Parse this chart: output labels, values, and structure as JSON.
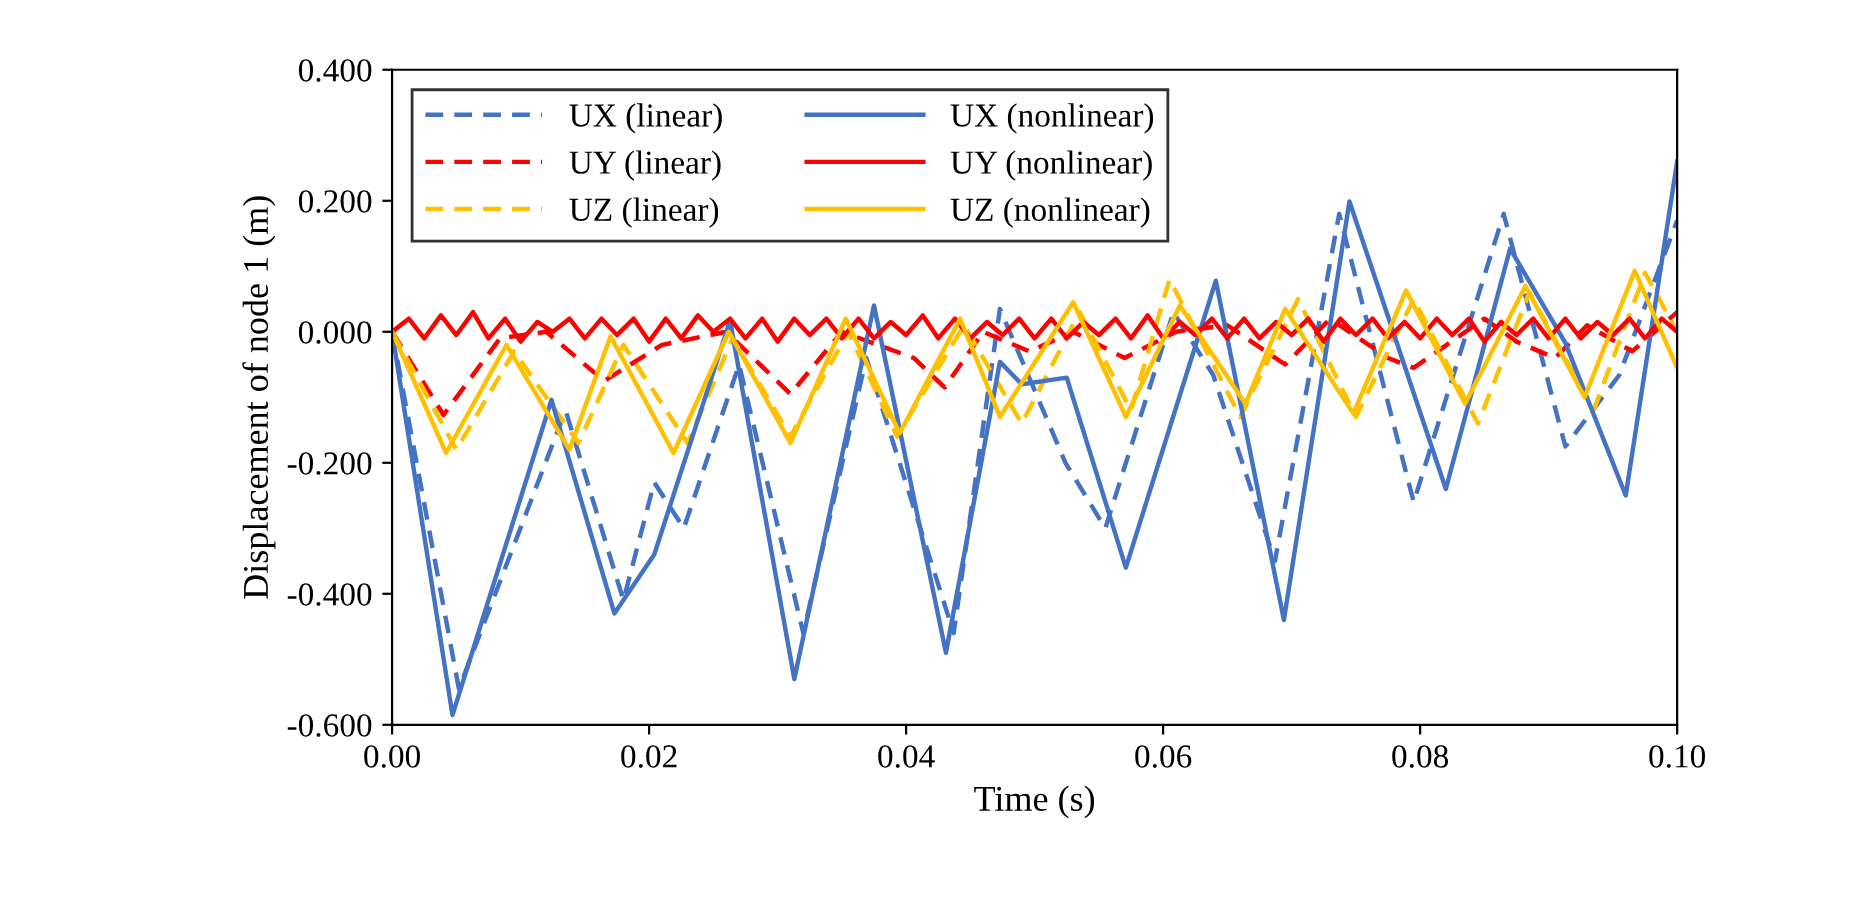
{
  "chart_data": {
    "type": "line",
    "xlabel": "Time (s)",
    "ylabel": "Displacement of node 1 (m)",
    "xlim": [
      0,
      0.1
    ],
    "xticks": [
      {
        "value": 0,
        "label": "0.00"
      },
      {
        "value": 0.02,
        "label": "0.02"
      },
      {
        "value": 0.04,
        "label": "0.04"
      },
      {
        "value": 0.06,
        "label": "0.06"
      },
      {
        "value": 0.08,
        "label": "0.08"
      },
      {
        "value": 0.1,
        "label": "0.10"
      }
    ],
    "ylim": [
      -0.6,
      0.4
    ],
    "yticks": [
      {
        "value": -0.6,
        "label": "-0.600"
      },
      {
        "value": -0.4,
        "label": "-0.400"
      },
      {
        "value": -0.2,
        "label": "-0.200"
      },
      {
        "value": 0,
        "label": "0.000"
      },
      {
        "value": 0.2,
        "label": "0.200"
      },
      {
        "value": 0.4,
        "label": "0.400"
      }
    ],
    "grid": false,
    "legend": "top left",
    "marker": "none",
    "series": [
      {
        "name": "UX (linear)",
        "color": "#4472c4",
        "line_style": "dashed",
        "x": [
          0,
          0.0052,
          0.0135,
          0.018,
          0.0204,
          0.0227,
          0.027,
          0.032,
          0.0369,
          0.0437,
          0.0473,
          0.0524,
          0.0555,
          0.0608,
          0.0639,
          0.0687,
          0.0737,
          0.0795,
          0.0865,
          0.0913,
          0.0955,
          0.1
        ],
        "values": [
          0,
          -0.545,
          -0.12,
          -0.41,
          -0.23,
          -0.3,
          -0.05,
          -0.46,
          -0.04,
          -0.46,
          0.035,
          -0.2,
          -0.3,
          0.03,
          -0.066,
          -0.35,
          0.18,
          -0.26,
          0.18,
          -0.175,
          -0.066,
          0.17
        ]
      },
      {
        "name": "UY (linear)",
        "color": "#ff0000",
        "line_style": "dashed",
        "x": [
          0,
          0.004,
          0.0084,
          0.012,
          0.0165,
          0.021,
          0.026,
          0.031,
          0.035,
          0.0406,
          0.043,
          0.046,
          0.0496,
          0.053,
          0.057,
          0.061,
          0.065,
          0.0695,
          0.073,
          0.0775,
          0.0795,
          0.085,
          0.0875,
          0.0905,
          0.093,
          0.0965,
          0.1
        ],
        "values": [
          0,
          -0.127,
          -0.01,
          0.0,
          -0.075,
          -0.02,
          0.0,
          -0.095,
          0.0,
          -0.04,
          -0.085,
          0.0,
          -0.03,
          0.0,
          -0.04,
          0.0,
          0.01,
          -0.05,
          0.02,
          -0.04,
          -0.055,
          0.02,
          -0.015,
          -0.04,
          0.01,
          -0.03,
          0.03
        ]
      },
      {
        "name": "UZ (linear)",
        "color": "#ffc000",
        "line_style": "dashed",
        "x": [
          0,
          0.005,
          0.0095,
          0.0145,
          0.018,
          0.023,
          0.0265,
          0.031,
          0.0355,
          0.0393,
          0.0445,
          0.049,
          0.0535,
          0.0575,
          0.0605,
          0.066,
          0.0705,
          0.075,
          0.0795,
          0.0845,
          0.0885,
          0.0935,
          0.0975,
          0.1
        ],
        "values": [
          0,
          -0.18,
          -0.03,
          -0.17,
          -0.02,
          -0.17,
          -0.01,
          -0.16,
          0.0,
          -0.16,
          0.01,
          -0.14,
          0.03,
          -0.12,
          0.08,
          -0.13,
          0.05,
          -0.13,
          0.05,
          -0.14,
          0.06,
          -0.12,
          0.09,
          0.0
        ]
      },
      {
        "name": "UX (nonlinear)",
        "color": "#4472c4",
        "line_style": "solid",
        "x": [
          0,
          0.0047,
          0.0124,
          0.0173,
          0.0204,
          0.0263,
          0.0313,
          0.0375,
          0.0431,
          0.0473,
          0.049,
          0.0525,
          0.0571,
          0.0641,
          0.0694,
          0.0745,
          0.082,
          0.087,
          0.0913,
          0.096,
          0.1
        ],
        "values": [
          0,
          -0.585,
          -0.104,
          -0.43,
          -0.34,
          0.017,
          -0.53,
          0.04,
          -0.49,
          -0.046,
          -0.08,
          -0.07,
          -0.36,
          0.078,
          -0.44,
          0.199,
          -0.24,
          0.127,
          -0.017,
          -0.25,
          0.26
        ]
      },
      {
        "name": "UY (nonlinear)",
        "color": "#ff0000",
        "line_style": "solid",
        "x": [
          0,
          0.0013,
          0.0025,
          0.0038,
          0.005,
          0.0063,
          0.0075,
          0.0088,
          0.01,
          0.0113,
          0.0125,
          0.0138,
          0.015,
          0.0163,
          0.0175,
          0.0188,
          0.02,
          0.0213,
          0.0225,
          0.0238,
          0.025,
          0.0263,
          0.0275,
          0.0288,
          0.03,
          0.0313,
          0.0325,
          0.0338,
          0.035,
          0.0363,
          0.0375,
          0.0388,
          0.04,
          0.0413,
          0.0425,
          0.0438,
          0.045,
          0.0463,
          0.0475,
          0.0488,
          0.05,
          0.0513,
          0.0525,
          0.0538,
          0.055,
          0.0563,
          0.0575,
          0.0588,
          0.06,
          0.0613,
          0.0625,
          0.0638,
          0.065,
          0.0663,
          0.0675,
          0.0688,
          0.07,
          0.0713,
          0.0725,
          0.0738,
          0.075,
          0.0763,
          0.0775,
          0.0788,
          0.08,
          0.0813,
          0.0825,
          0.0838,
          0.085,
          0.0863,
          0.0875,
          0.0888,
          0.09,
          0.0913,
          0.0925,
          0.0938,
          0.095,
          0.0963,
          0.0975,
          0.0988,
          0.1
        ],
        "values": [
          0,
          0.02,
          -0.01,
          0.025,
          -0.005,
          0.03,
          -0.01,
          0.02,
          -0.015,
          0.015,
          0.0,
          0.02,
          -0.01,
          0.02,
          -0.005,
          0.02,
          -0.015,
          0.02,
          -0.01,
          0.025,
          0.0,
          0.02,
          -0.01,
          0.02,
          -0.015,
          0.02,
          -0.005,
          0.02,
          -0.01,
          0.02,
          -0.01,
          0.015,
          -0.005,
          0.025,
          -0.01,
          0.02,
          -0.01,
          0.015,
          -0.005,
          0.02,
          -0.01,
          0.02,
          -0.01,
          0.015,
          -0.005,
          0.02,
          -0.01,
          0.025,
          -0.01,
          0.015,
          -0.005,
          0.02,
          -0.01,
          0.02,
          -0.01,
          0.015,
          -0.005,
          0.02,
          -0.015,
          0.02,
          -0.005,
          0.02,
          -0.01,
          0.015,
          -0.01,
          0.02,
          -0.005,
          0.02,
          -0.015,
          0.015,
          -0.005,
          0.02,
          -0.01,
          0.02,
          -0.01,
          0.015,
          -0.005,
          0.02,
          -0.01,
          0.02,
          0.0
        ]
      },
      {
        "name": "UZ (nonlinear)",
        "color": "#ffc000",
        "line_style": "solid",
        "x": [
          0,
          0.0042,
          0.0089,
          0.0138,
          0.017,
          0.0219,
          0.0262,
          0.031,
          0.0353,
          0.0395,
          0.0442,
          0.0473,
          0.053,
          0.0571,
          0.0613,
          0.0664,
          0.0695,
          0.0748,
          0.0789,
          0.0835,
          0.0882,
          0.0928,
          0.0967,
          0.1
        ],
        "values": [
          0,
          -0.185,
          -0.02,
          -0.18,
          -0.007,
          -0.185,
          0.0,
          -0.17,
          0.02,
          -0.155,
          0.02,
          -0.13,
          0.045,
          -0.13,
          0.04,
          -0.11,
          0.035,
          -0.125,
          0.063,
          -0.11,
          0.07,
          -0.1,
          0.093,
          -0.055
        ]
      }
    ]
  }
}
